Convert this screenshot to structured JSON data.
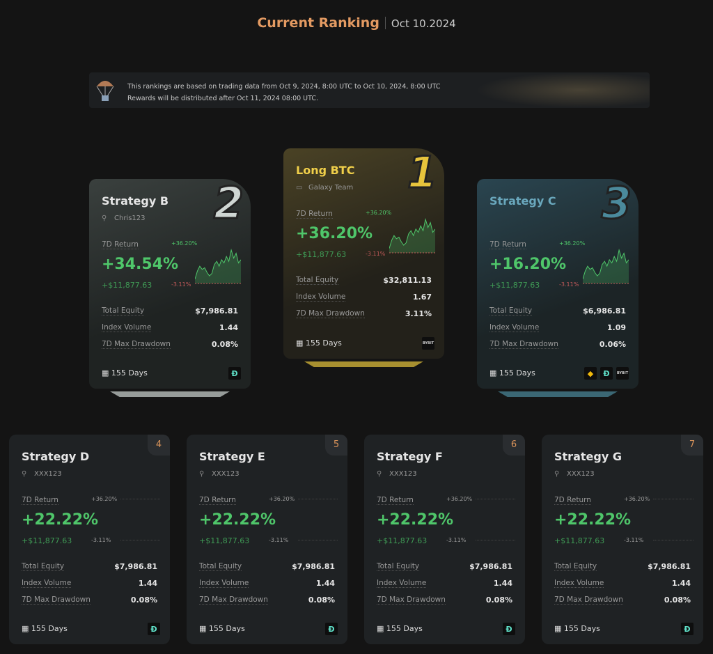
{
  "header": {
    "title": "Current Ranking",
    "date": "Oct 10.2024"
  },
  "banner": {
    "line1": "This rankings are based on trading data from Oct 9, 2024, 8:00 UTC to Oct 10, 2024, 8:00 UTC",
    "line2": "Rewards will be distributed after Oct 11, 2024 08:00 UTC."
  },
  "labels": {
    "return": "7D Return",
    "equity": "Total Equity",
    "volume": "Index Volume",
    "drawdown": "7D Max Drawdown",
    "hi": "+36.20%",
    "lo": "-3.11%"
  },
  "colors": {
    "accent": "#e39a62",
    "green": "#4fc66a",
    "gold": "#e7c43c",
    "silver": "#cfd6d3",
    "teal": "#4b8a9c"
  },
  "spark": [
    2,
    12,
    18,
    14,
    16,
    10,
    6,
    9,
    20,
    24,
    18,
    26,
    22,
    30,
    24,
    38,
    28,
    34,
    22,
    26
  ],
  "cards": [
    {
      "rank": "2",
      "name": "Strategy B",
      "user": "Chris123",
      "ret": "+34.54%",
      "pnl": "+$11,877.63",
      "equity": "$7,986.81",
      "volume": "1.44",
      "drawdown": "0.08%",
      "days": "155 Days",
      "exchanges": [
        "d-coin"
      ]
    },
    {
      "rank": "1",
      "name": "Long BTC",
      "user": "Galaxy Team",
      "ret": "+36.20%",
      "pnl": "+$11,877.63",
      "equity": "$32,811.13",
      "volume": "1.67",
      "drawdown": "3.11%",
      "days": "155 Days",
      "exchanges": [
        "bybit"
      ]
    },
    {
      "rank": "3",
      "name": "Strategy C",
      "user": "",
      "ret": "+16.20%",
      "pnl": "+$11,877.63",
      "equity": "$6,986.81",
      "volume": "1.09",
      "drawdown": "0.06%",
      "days": "155 Days",
      "exchanges": [
        "binance",
        "d-coin",
        "bybit"
      ]
    },
    {
      "rank": "4",
      "name": "Strategy D",
      "user": "XXX123",
      "ret": "+22.22%",
      "pnl": "+$11,877.63",
      "equity": "$7,986.81",
      "volume": "1.44",
      "drawdown": "0.08%",
      "days": "155 Days",
      "exchanges": [
        "d-coin"
      ]
    },
    {
      "rank": "5",
      "name": "Strategy E",
      "user": "XXX123",
      "ret": "+22.22%",
      "pnl": "+$11,877.63",
      "equity": "$7,986.81",
      "volume": "1.44",
      "drawdown": "0.08%",
      "days": "155 Days",
      "exchanges": [
        "d-coin"
      ]
    },
    {
      "rank": "6",
      "name": "Strategy F",
      "user": "XXX123",
      "ret": "+22.22%",
      "pnl": "+$11,877.63",
      "equity": "$7,986.81",
      "volume": "1.44",
      "drawdown": "0.08%",
      "days": "155 Days",
      "exchanges": [
        "d-coin"
      ]
    },
    {
      "rank": "7",
      "name": "Strategy G",
      "user": "XXX123",
      "ret": "+22.22%",
      "pnl": "+$11,877.63",
      "equity": "$7,986.81",
      "volume": "1.44",
      "drawdown": "0.08%",
      "days": "155 Days",
      "exchanges": [
        "d-coin"
      ]
    }
  ],
  "exchange_labels": {
    "bybit": "BYBIT",
    "d-coin": "Đ",
    "binance": "◆"
  }
}
